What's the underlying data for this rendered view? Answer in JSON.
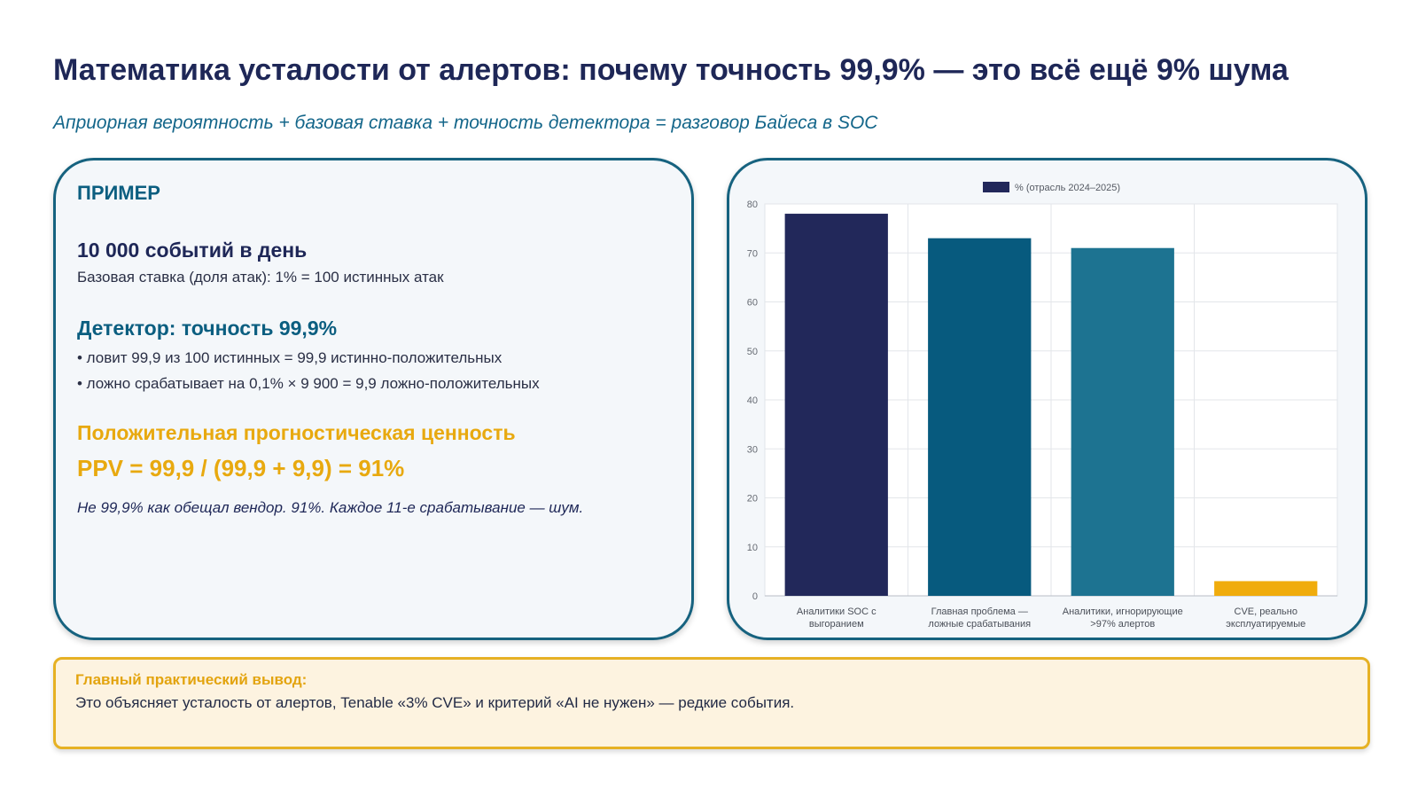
{
  "slide": {
    "title": "Математика усталости от алертов: почему точность 99,9% — это всё ещё 9% шума",
    "subtitle": "Априорная вероятность + базовая ставка + точность детектора = разговор Байеса в SOC"
  },
  "example": {
    "label": "ПРИМЕР",
    "events_heading": "10 000 событий в день",
    "base_rate": "Базовая ставка (доля атак): 1% = 100 истинных атак",
    "detector_heading": "Детектор: точность 99,9%",
    "bullet_true_positives": "• ловит 99,9 из 100 истинных = 99,9 истинно-положительных",
    "bullet_false_positives": "• ложно срабатывает на 0,1% × 9 900 = 9,9 ложно-положительных",
    "ppv_heading": "Положительная прогностическая ценность",
    "ppv_formula": "PPV = 99,9 / (99,9 + 9,9) = 91%",
    "note": "Не 99,9% как обещал вендор. 91%. Каждое 11-е срабатывание — шум."
  },
  "takeaway": {
    "title": "Главный практический вывод:",
    "text": "Это объясняет усталость от алертов, Tenable «3% CVE» и критерий «AI не нужен» — редкие события."
  },
  "colors": {
    "navy": "#22285a",
    "teal_dark": "#075a7e",
    "teal": "#1d7391",
    "amber": "#f0ac0c",
    "card_border": "#16627f"
  },
  "chart_data": {
    "type": "bar",
    "title": "",
    "xlabel": "",
    "ylabel": "",
    "categories": [
      "Аналитики SOC с выгоранием",
      "Главная проблема — ложные срабатывания",
      "Аналитики, игнорирующие >97% алертов",
      "CVE, реально эксплуатируемые"
    ],
    "series": [
      {
        "name": "% (отрасль 2024–2025)",
        "values": [
          78,
          73,
          71,
          3
        ]
      }
    ],
    "bar_colors": [
      "#22285a",
      "#075a7e",
      "#1d7391",
      "#f0ac0c"
    ],
    "legend_color": "#22285a",
    "ylim": [
      0,
      80
    ],
    "yticks": [
      0,
      10,
      20,
      30,
      40,
      50,
      60,
      70,
      80
    ],
    "grid": true,
    "legend_position": "top-center"
  }
}
